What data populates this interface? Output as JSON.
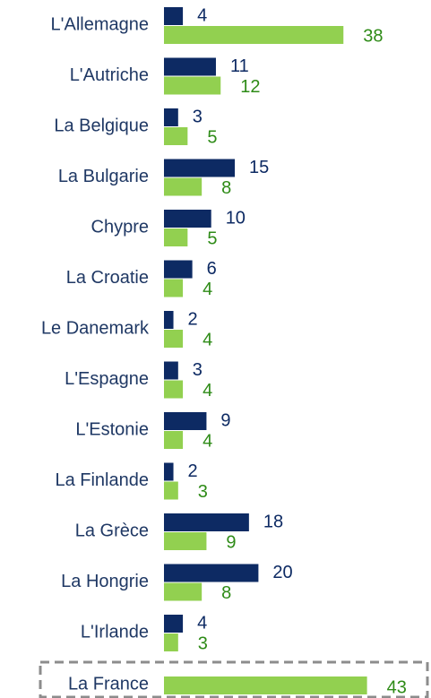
{
  "chart_data": {
    "type": "bar",
    "orientation": "horizontal",
    "categories": [
      "L'Allemagne",
      "L'Autriche",
      "La Belgique",
      "La Bulgarie",
      "Chypre",
      "La Croatie",
      "Le Danemark",
      "L'Espagne",
      "L'Estonie",
      "La Finlande",
      "La Grèce",
      "La Hongrie",
      "L'Irlande",
      "La France"
    ],
    "series": [
      {
        "color": "#0d2a63",
        "values": [
          4,
          11,
          3,
          15,
          10,
          6,
          2,
          3,
          9,
          2,
          18,
          20,
          4,
          null
        ]
      },
      {
        "color": "#92d050",
        "values": [
          38,
          12,
          5,
          8,
          5,
          4,
          4,
          4,
          4,
          3,
          9,
          8,
          3,
          43
        ]
      }
    ],
    "highlight": "La France"
  }
}
